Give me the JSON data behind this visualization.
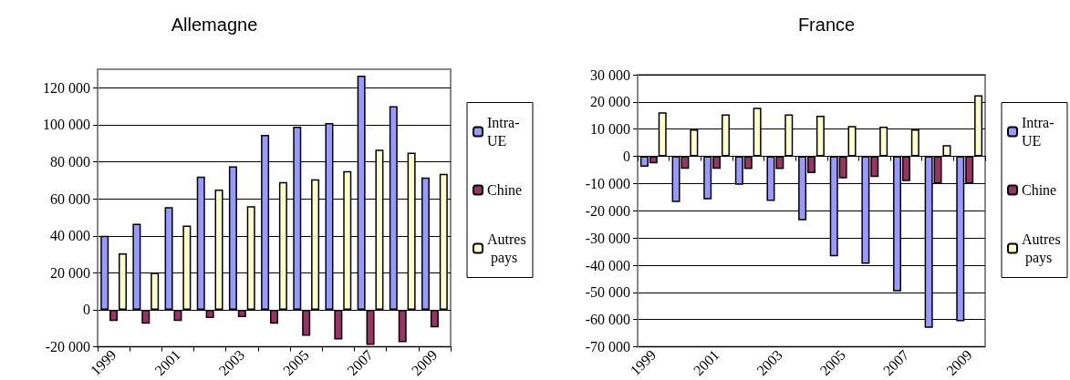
{
  "chart_data": [
    {
      "type": "bar",
      "title": "Allemagne",
      "categories": [
        "1999",
        null,
        "2001",
        null,
        "2003",
        null,
        "2005",
        null,
        "2007",
        null,
        "2009"
      ],
      "series": [
        {
          "name": "Intra-UE",
          "color": "#9999ff",
          "values": [
            40000,
            46500,
            55500,
            72000,
            77500,
            94500,
            99000,
            101000,
            126500,
            110000,
            71500
          ]
        },
        {
          "name": "Chine",
          "color": "#993366",
          "values": [
            -6000,
            -7500,
            -6000,
            -4500,
            -4000,
            -7500,
            -14000,
            -16000,
            -19000,
            -17500,
            -9500
          ]
        },
        {
          "name": "Autres pays",
          "color": "#ffffcc",
          "values": [
            30500,
            20000,
            45500,
            65000,
            56000,
            69000,
            70500,
            75000,
            86500,
            85000,
            73500
          ]
        }
      ],
      "ylim": [
        -20000,
        130000
      ],
      "yticks": [
        {
          "value": -20000,
          "label": "-20 000"
        },
        {
          "value": 0,
          "label": "0"
        },
        {
          "value": 20000,
          "label": "20 000"
        },
        {
          "value": 40000,
          "label": "40 000"
        },
        {
          "value": 60000,
          "label": "60 000"
        },
        {
          "value": 80000,
          "label": "80 000"
        },
        {
          "value": 100000,
          "label": "100 000"
        },
        {
          "value": 120000,
          "label": "120 000"
        }
      ],
      "grid": "y",
      "legend": "right"
    },
    {
      "type": "bar",
      "title": "France",
      "categories": [
        "1999",
        null,
        "2001",
        null,
        "2003",
        null,
        "2005",
        null,
        "2007",
        null,
        "2009"
      ],
      "series": [
        {
          "name": "Intra-UE",
          "color": "#9999ff",
          "values": [
            -3800,
            -16800,
            -15800,
            -10400,
            -16400,
            -23500,
            -36700,
            -39500,
            -49600,
            -63000,
            -60600
          ]
        },
        {
          "name": "Chine",
          "color": "#993366",
          "values": [
            -2600,
            -4600,
            -4600,
            -4700,
            -4700,
            -6200,
            -8100,
            -7600,
            -9100,
            -10000,
            -10000
          ]
        },
        {
          "name": "Autres pays",
          "color": "#ffffcc",
          "values": [
            16200,
            9900,
            15400,
            17900,
            15400,
            14900,
            11200,
            10900,
            9900,
            4100,
            22500
          ]
        }
      ],
      "ylim": [
        -70000,
        30000
      ],
      "yticks": [
        {
          "value": -70000,
          "label": "-70 000"
        },
        {
          "value": -60000,
          "label": "-60 000"
        },
        {
          "value": -50000,
          "label": "-50 000"
        },
        {
          "value": -40000,
          "label": "-40 000"
        },
        {
          "value": -30000,
          "label": "-30 000"
        },
        {
          "value": -20000,
          "label": "-20 000"
        },
        {
          "value": -10000,
          "label": "-10 000"
        },
        {
          "value": 0,
          "label": "0"
        },
        {
          "value": 10000,
          "label": "10 000"
        },
        {
          "value": 20000,
          "label": "20 000"
        },
        {
          "value": 30000,
          "label": "30 000"
        }
      ],
      "grid": "y",
      "legend": "right"
    }
  ]
}
